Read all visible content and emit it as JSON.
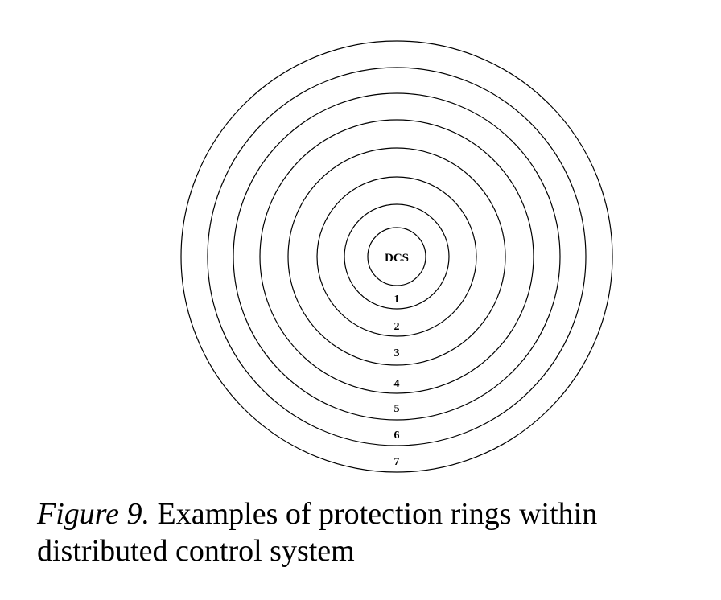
{
  "diagram": {
    "center_label": "DCS",
    "rings": [
      {
        "label": "1"
      },
      {
        "label": "2"
      },
      {
        "label": "3"
      },
      {
        "label": "4"
      },
      {
        "label": "5"
      },
      {
        "label": "6"
      },
      {
        "label": "7"
      }
    ],
    "colors": {
      "stroke": "#000000",
      "background": "#ffffff"
    }
  },
  "caption": {
    "figure_label": "Figure 9.",
    "text": "Examples of protection rings within distributed control system"
  }
}
